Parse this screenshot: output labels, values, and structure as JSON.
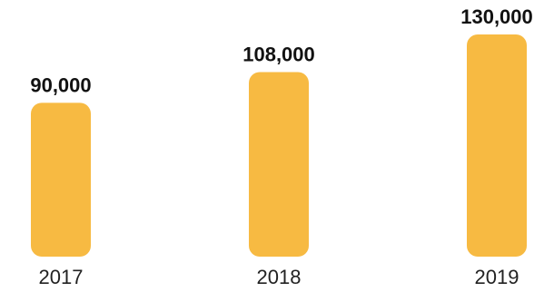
{
  "chart_data": {
    "type": "bar",
    "categories": [
      "2017",
      "2018",
      "2019"
    ],
    "values": [
      90000,
      108000,
      130000
    ],
    "data_labels": [
      "90,000",
      "108,000",
      "130,000"
    ],
    "title": "",
    "xlabel": "",
    "ylabel": "",
    "ylim": [
      0,
      130000
    ],
    "grid": false,
    "legend": "none",
    "colors": {
      "bar": "#F7BA42",
      "label": "#111111",
      "tick": "#222222"
    }
  }
}
